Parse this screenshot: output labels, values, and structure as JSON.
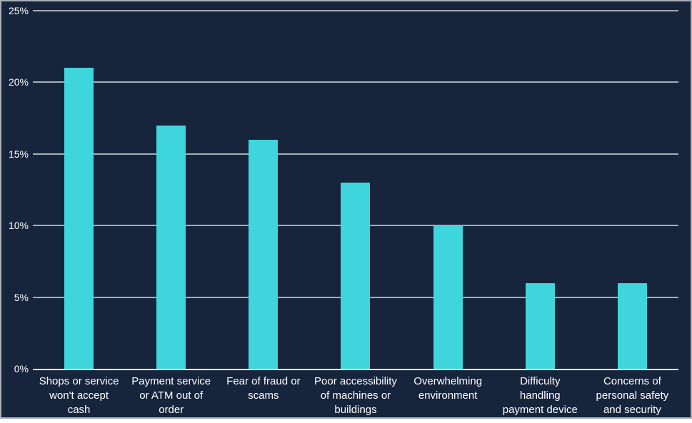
{
  "chart_data": {
    "type": "bar",
    "title": "",
    "xlabel": "",
    "ylabel": "",
    "categories": [
      "Shops or service won't accept cash",
      "Payment service or ATM out of order",
      "Fear of fraud or scams",
      "Poor accessibility of machines or buildings",
      "Overwhelming environment",
      "Difficulty handling payment device",
      "Concerns of personal safety and security"
    ],
    "category_lines": [
      [
        "Shops or service",
        "won't accept",
        "cash"
      ],
      [
        "Payment service",
        "or ATM out of",
        "order"
      ],
      [
        "Fear of fraud or",
        "scams"
      ],
      [
        "Poor accessibility",
        "of machines or",
        "buildings"
      ],
      [
        "Overwhelming",
        "environment"
      ],
      [
        "Difficulty",
        "handling",
        "payment device"
      ],
      [
        "Concerns of",
        "personal safety",
        "and security"
      ]
    ],
    "values": [
      21,
      17,
      16,
      13,
      10,
      6,
      6
    ],
    "unit": "%",
    "ylim": [
      0,
      25
    ],
    "ytick_step": 5,
    "ytick_labels": [
      "0%",
      "5%",
      "10%",
      "15%",
      "20%",
      "25%"
    ],
    "grid": true,
    "legend": false,
    "colors": {
      "bar": "#3ED6DC",
      "background": "#16243C",
      "gridline": "#A8AEB7",
      "axis_line": "#FFFFFF",
      "text": "#FFFFFF",
      "border": "#A9B0B8"
    }
  }
}
